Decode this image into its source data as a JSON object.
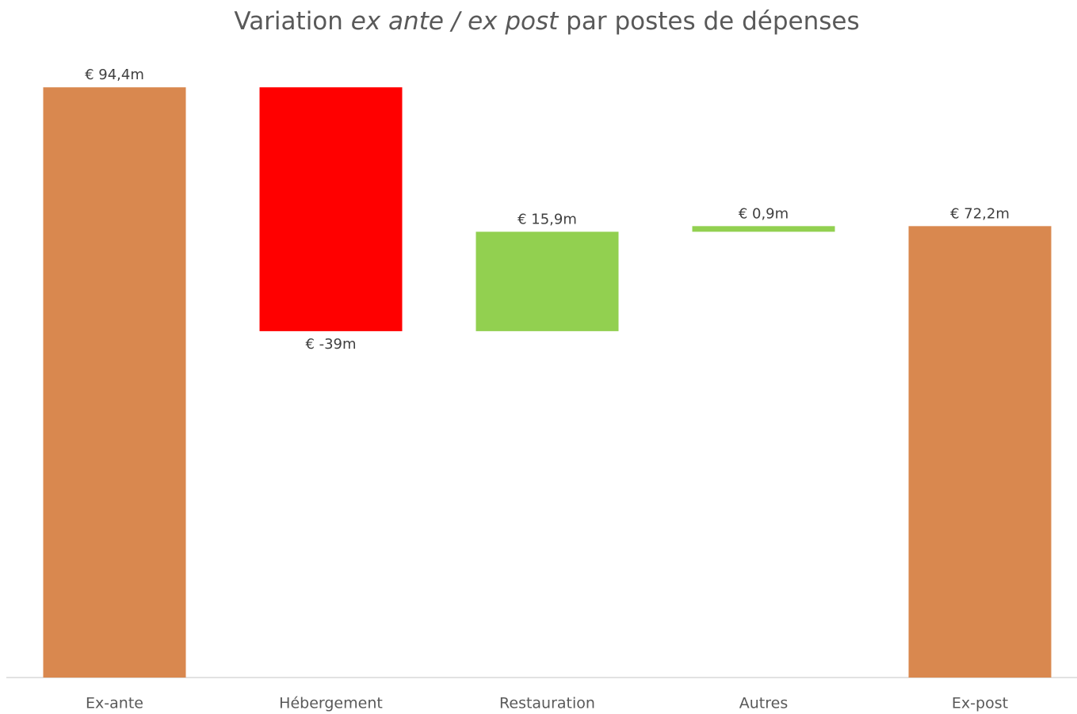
{
  "chart_data": {
    "type": "waterfall",
    "title": [
      "Variation ",
      "ex ante / ex post",
      " par postes de dépenses"
    ],
    "title_italic": [
      false,
      true,
      false
    ],
    "categories": [
      "Ex-ante",
      "Hébergement",
      "Restauration",
      "Autres",
      "Ex-post"
    ],
    "values": [
      94.4,
      -39,
      15.9,
      0.9,
      72.2
    ],
    "value_labels": [
      "€ 94,4m",
      "€ -39m",
      "€ 15,9m",
      "€ 0,9m",
      "€ 72,2m"
    ],
    "totals": [
      true,
      false,
      false,
      false,
      true
    ],
    "colors": {
      "total": "#d9884f",
      "increase": "#92d050",
      "decrease": "#ff0000"
    },
    "ylim": [
      0,
      100
    ]
  }
}
